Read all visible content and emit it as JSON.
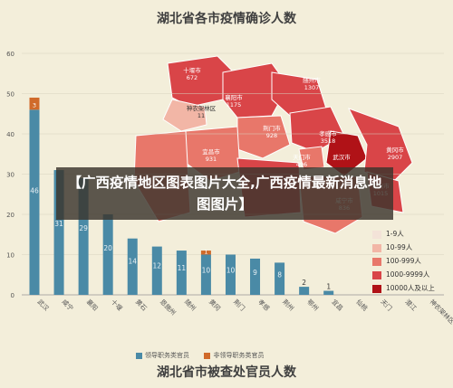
{
  "top_title": "湖北省各市疫情确诊人数",
  "bottom_title": "湖北省市被查处官员人数",
  "banner_text": "【广西疫情地区图表图片大全,广西疫情最新消息地图图片】",
  "bar_legend": [
    {
      "label": "领导职务类官员",
      "color": "#4a8aa6"
    },
    {
      "label": "非领导职务类官员",
      "color": "#d06a2a"
    }
  ],
  "map_legend": [
    {
      "label": "1-9人",
      "color": "#f3e3d8"
    },
    {
      "label": "10-99人",
      "color": "#f2b6a6"
    },
    {
      "label": "100-999人",
      "color": "#e8776a"
    },
    {
      "label": "1000-9999人",
      "color": "#d94548"
    },
    {
      "label": "10000人及以上",
      "color": "#b01217"
    }
  ],
  "map_labels": [
    {
      "name": "十堰市",
      "value": "672"
    },
    {
      "name": "襄阳市",
      "value": "1175"
    },
    {
      "name": "随州市",
      "value": "1307"
    },
    {
      "name": "神农架林区",
      "value": "11"
    },
    {
      "name": "荆门市",
      "value": "928"
    },
    {
      "name": "孝感市",
      "value": "3518"
    },
    {
      "name": "宜昌市",
      "value": "931"
    },
    {
      "name": "天门市",
      "value": "496"
    },
    {
      "name": "武汉市",
      "value": ""
    },
    {
      "name": "黄冈市",
      "value": "2907"
    },
    {
      "name": "鄂州市",
      "value": "1015"
    },
    {
      "name": "咸宁市",
      "value": "836"
    }
  ],
  "chart_data": {
    "type": "bar",
    "title": "湖北省市被查处官员人数",
    "ylim": [
      0,
      60
    ],
    "yticks": [
      0,
      10,
      20,
      30,
      40,
      50,
      60
    ],
    "categories": [
      "武汉",
      "咸宁",
      "襄阳",
      "十堰",
      "黄石",
      "恩施州",
      "随州",
      "黄冈",
      "荆门",
      "孝感",
      "荆州",
      "鄂州",
      "宜昌",
      "仙桃",
      "天门",
      "潜江",
      "神农架林区"
    ],
    "series": [
      {
        "name": "领导职务类官员",
        "color": "#4a8aa6",
        "values": [
          46,
          31,
          29,
          20,
          14,
          12,
          11,
          10,
          10,
          9,
          8,
          2,
          1,
          0,
          0,
          0,
          0
        ]
      },
      {
        "name": "非领导职务类官员",
        "color": "#d06a2a",
        "values": [
          3,
          0,
          0,
          0,
          0,
          0,
          0,
          1,
          0,
          0,
          0,
          0,
          0,
          0,
          0,
          0,
          0
        ]
      }
    ],
    "data_labels": [
      "46",
      "31",
      "29",
      "20",
      "14",
      "12",
      "11",
      "10",
      "10",
      "9",
      "8",
      "2",
      "1",
      "",
      "",
      "",
      ""
    ],
    "top_labels": [
      "3",
      "",
      "",
      "",
      "",
      "",
      "",
      "1",
      "",
      "",
      "",
      "",
      "",
      "",
      "",
      "",
      ""
    ],
    "grid": true
  }
}
